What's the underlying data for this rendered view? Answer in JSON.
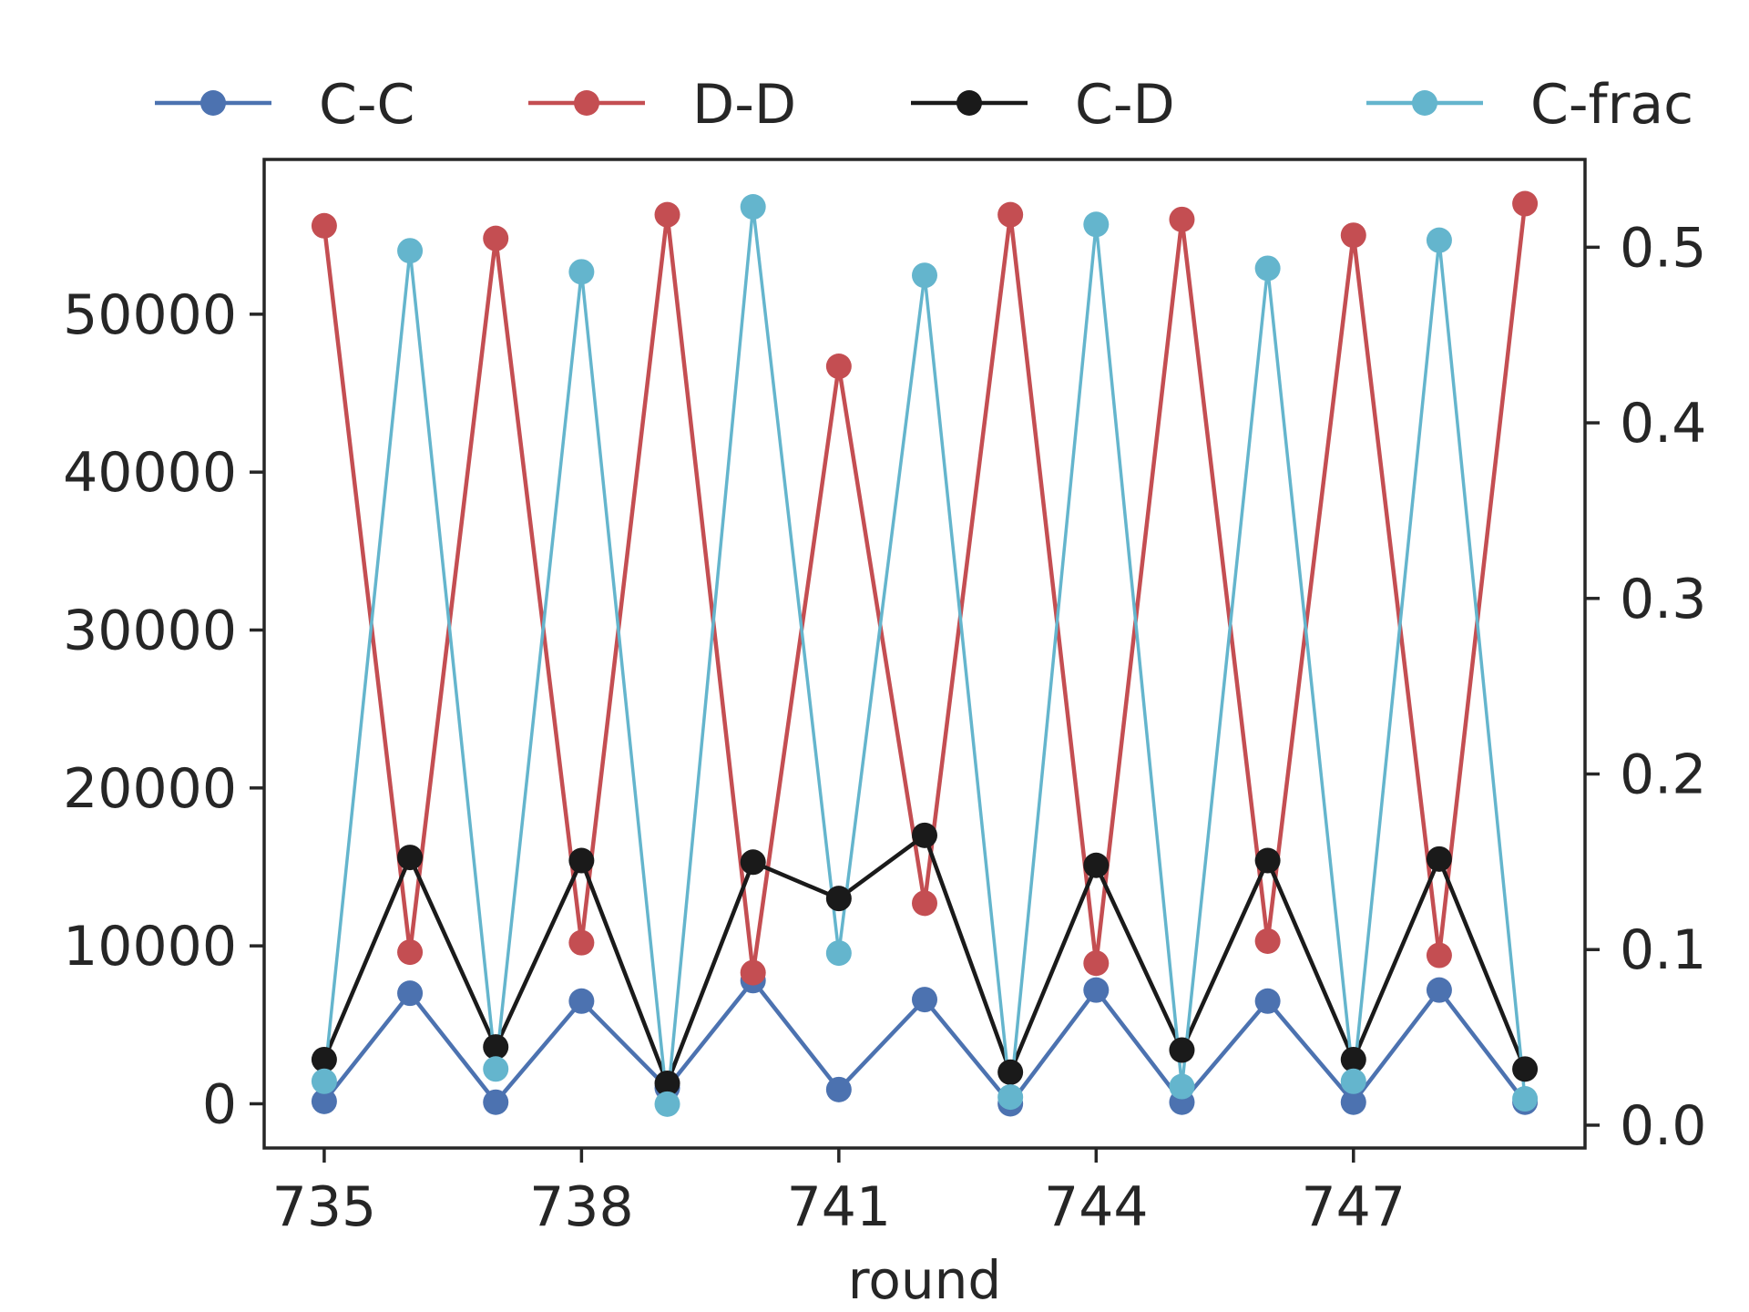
{
  "chart_data": {
    "type": "line",
    "xlabel": "round",
    "x": [
      735,
      736,
      737,
      738,
      739,
      740,
      741,
      742,
      743,
      744,
      745,
      746,
      747,
      748,
      749
    ],
    "xlim": [
      734.3,
      749.7
    ],
    "xticks": [
      735,
      738,
      741,
      744,
      747
    ],
    "y_left": {
      "ylim": [
        -2800,
        59800
      ],
      "ticks": [
        0,
        10000,
        20000,
        30000,
        40000,
        50000
      ]
    },
    "y_right": {
      "ylim": [
        -0.013,
        0.55
      ],
      "ticks": [
        0.0,
        0.1,
        0.2,
        0.3,
        0.4,
        0.5
      ],
      "tick_labels": [
        "0.0",
        "0.1",
        "0.2",
        "0.3",
        "0.4",
        "0.5"
      ]
    },
    "series": [
      {
        "name": "C-C",
        "axis": "left",
        "color": "#4c72b0",
        "values": [
          150,
          7000,
          100,
          6500,
          1000,
          7800,
          900,
          6600,
          0,
          7200,
          100,
          6500,
          100,
          7200,
          100
        ]
      },
      {
        "name": "D-D",
        "axis": "left",
        "color": "#c44e52",
        "values": [
          55600,
          9600,
          54800,
          10200,
          56300,
          8300,
          46700,
          12700,
          56300,
          8900,
          56000,
          10300,
          55000,
          9400,
          57000
        ]
      },
      {
        "name": "C-D",
        "axis": "left",
        "color": "#1a1a1a",
        "values": [
          2800,
          15600,
          3600,
          15400,
          1300,
          15300,
          13000,
          17000,
          2000,
          15100,
          3400,
          15400,
          2800,
          15500,
          2200
        ]
      },
      {
        "name": "C-frac",
        "axis": "right",
        "color": "#64b5cd",
        "values": [
          0.025,
          0.498,
          0.032,
          0.486,
          0.012,
          0.523,
          0.098,
          0.484,
          0.016,
          0.513,
          0.022,
          0.488,
          0.025,
          0.504,
          0.015
        ]
      }
    ],
    "legend": {
      "placement": "top-outside",
      "entries": [
        "C-C",
        "D-D",
        "C-D",
        "C-frac"
      ]
    },
    "grid": false
  }
}
